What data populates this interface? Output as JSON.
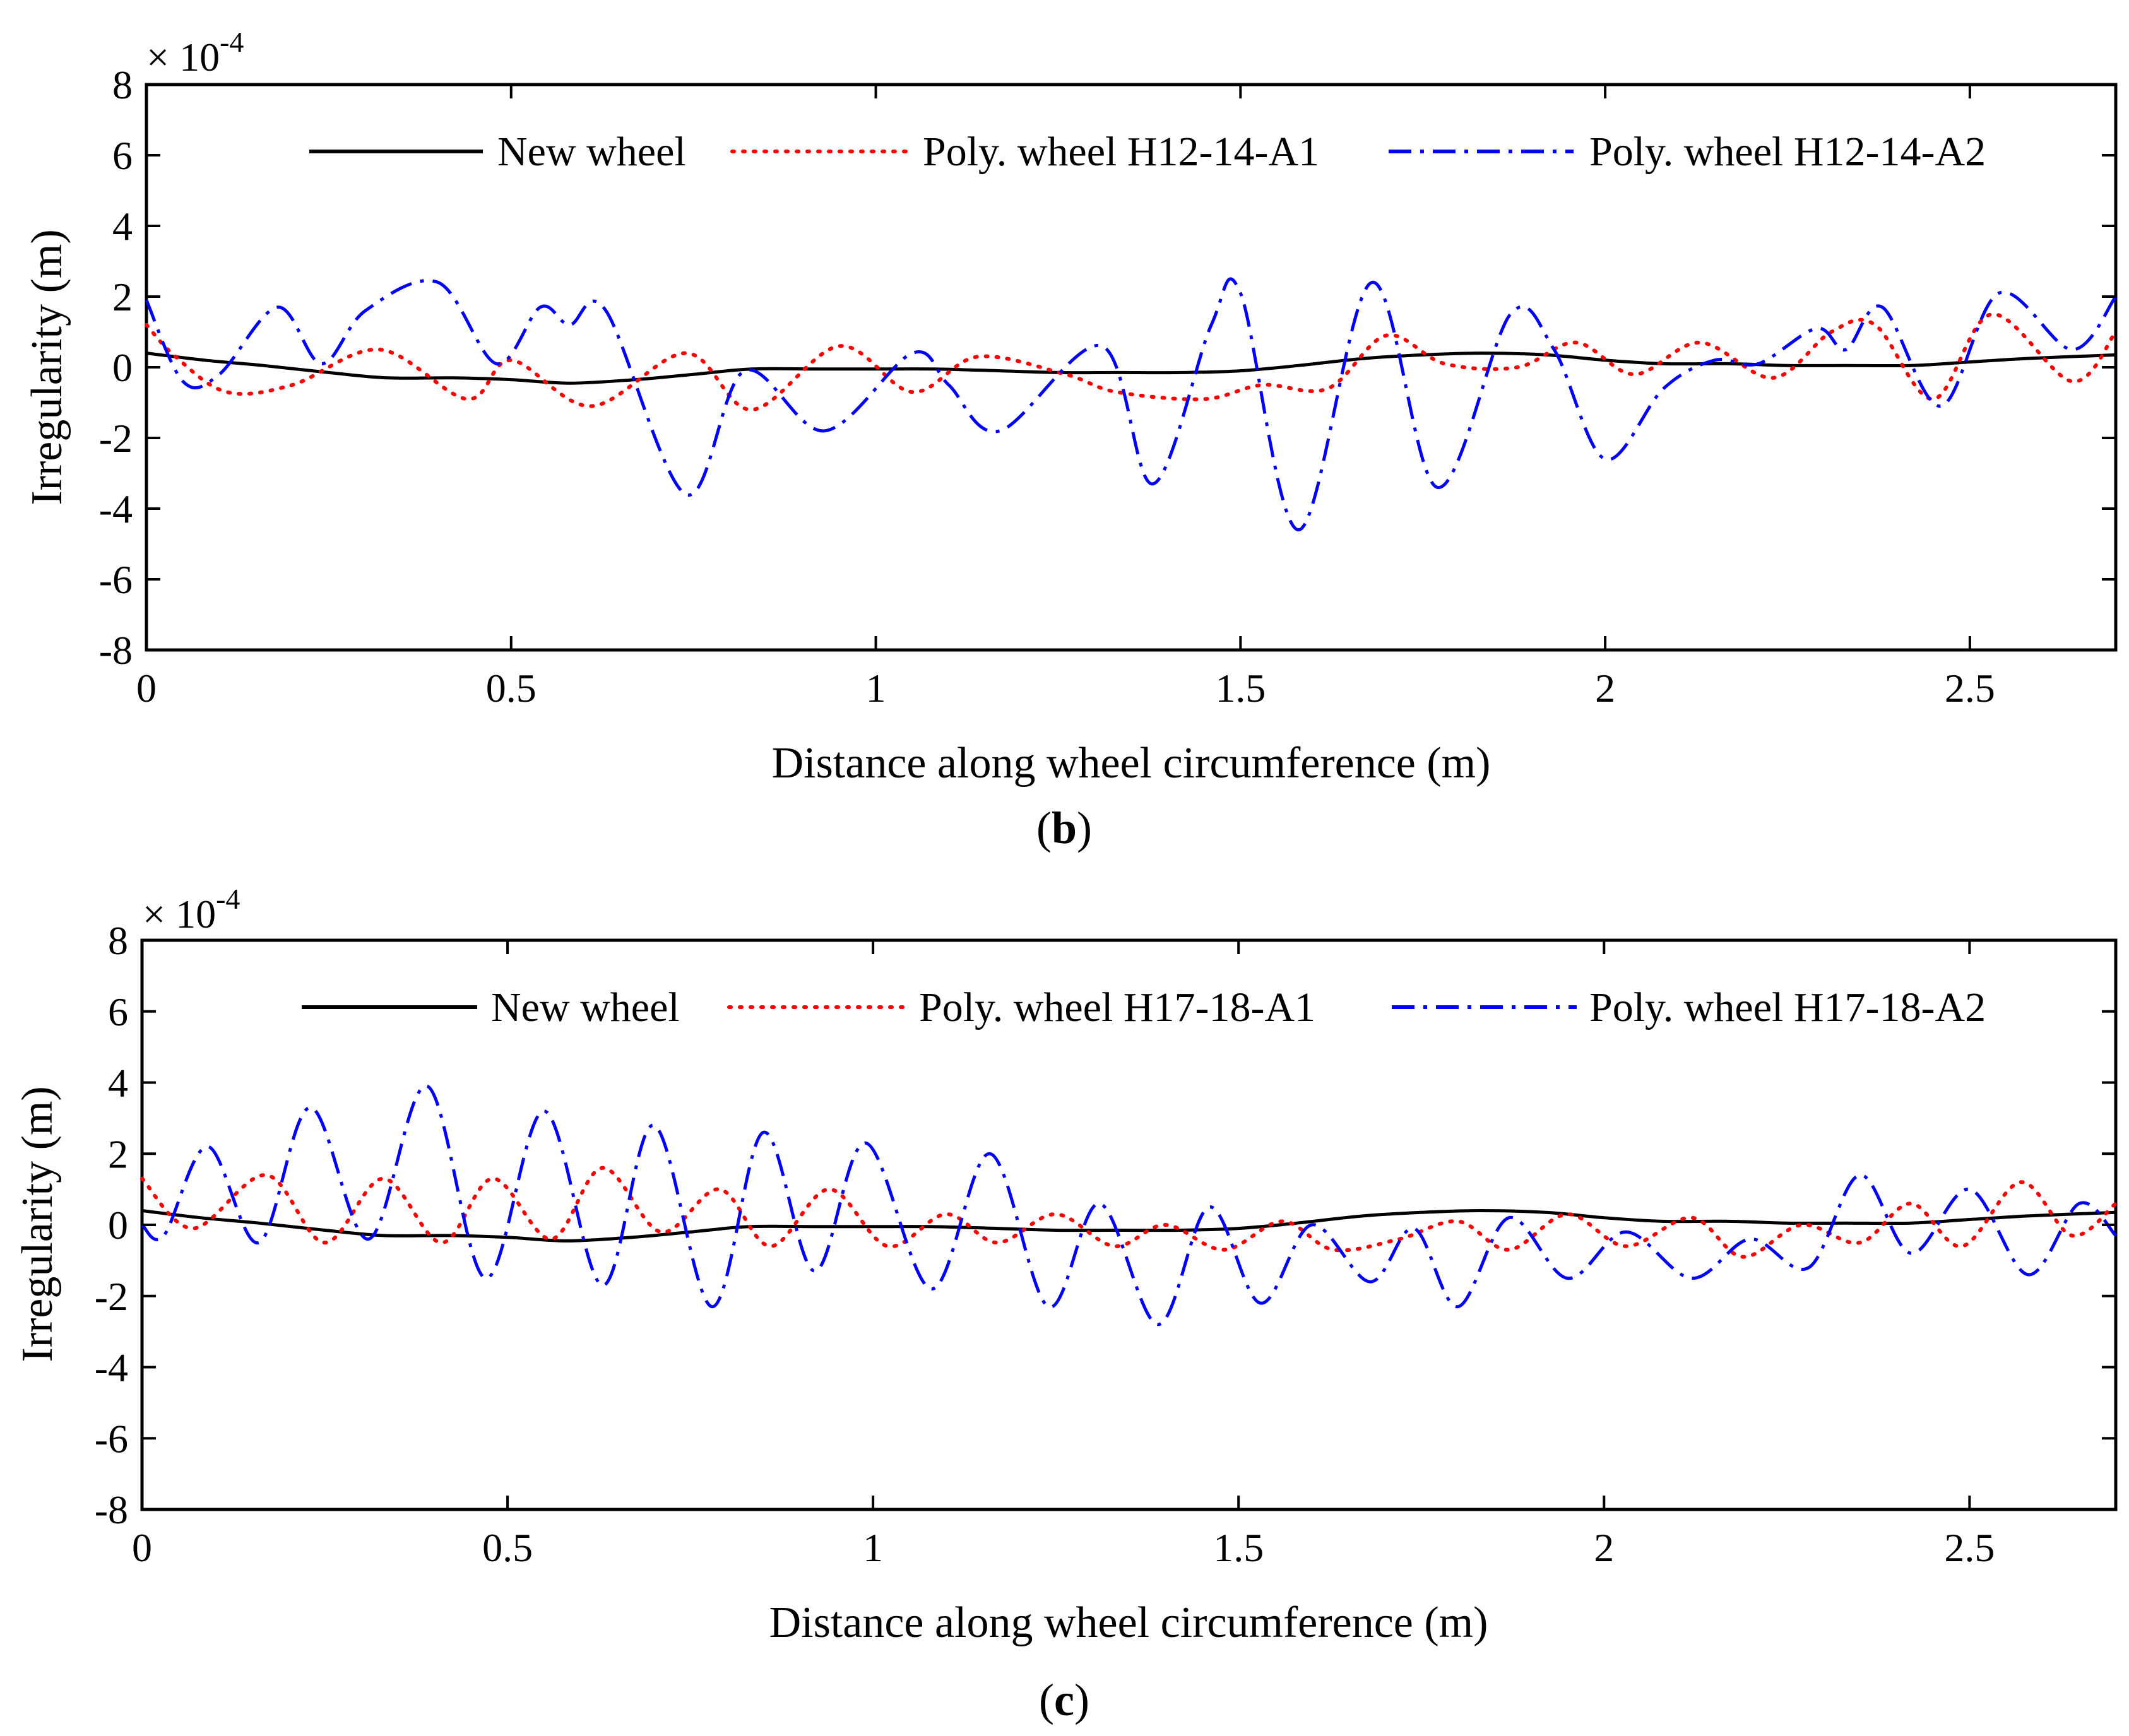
{
  "chart_data": [
    {
      "type": "line",
      "panel": "b",
      "caption_open": "(",
      "caption_letter": "b",
      "caption_close": ")",
      "exponent_base": "× 10",
      "exponent_power": "-4",
      "xlabel": "Distance along wheel circumference (m)",
      "ylabel": "Irregularity (m)",
      "xlim": [
        0,
        2.7
      ],
      "ylim": [
        -8,
        8
      ],
      "xticks": [
        "0",
        "0.5",
        "1",
        "1.5",
        "2",
        "2.5"
      ],
      "xtick_values": [
        0,
        0.5,
        1,
        1.5,
        2,
        2.5
      ],
      "yticks": [
        "8",
        "6",
        "4",
        "2",
        "0",
        "-2",
        "-4",
        "-6",
        "-8"
      ],
      "ytick_values": [
        8,
        6,
        4,
        2,
        0,
        -2,
        -4,
        -6,
        -8
      ],
      "legend_position": "top-right",
      "series": [
        {
          "name": "New wheel",
          "color": "#000000",
          "style": "solid",
          "points": [
            [
              0,
              0.4
            ],
            [
              0.08,
              0.2
            ],
            [
              0.16,
              0.05
            ],
            [
              0.25,
              -0.15
            ],
            [
              0.33,
              -0.3
            ],
            [
              0.42,
              -0.3
            ],
            [
              0.5,
              -0.35
            ],
            [
              0.58,
              -0.45
            ],
            [
              0.67,
              -0.35
            ],
            [
              0.75,
              -0.2
            ],
            [
              0.83,
              -0.05
            ],
            [
              0.92,
              -0.05
            ],
            [
              1.0,
              -0.05
            ],
            [
              1.08,
              -0.05
            ],
            [
              1.17,
              -0.1
            ],
            [
              1.25,
              -0.15
            ],
            [
              1.33,
              -0.15
            ],
            [
              1.42,
              -0.15
            ],
            [
              1.5,
              -0.1
            ],
            [
              1.58,
              0.05
            ],
            [
              1.67,
              0.25
            ],
            [
              1.75,
              0.35
            ],
            [
              1.83,
              0.4
            ],
            [
              1.92,
              0.35
            ],
            [
              2.0,
              0.2
            ],
            [
              2.08,
              0.1
            ],
            [
              2.17,
              0.1
            ],
            [
              2.25,
              0.05
            ],
            [
              2.33,
              0.05
            ],
            [
              2.42,
              0.05
            ],
            [
              2.5,
              0.15
            ],
            [
              2.58,
              0.25
            ],
            [
              2.7,
              0.35
            ]
          ]
        },
        {
          "name": "Poly. wheel H12-14-A1",
          "color": "#ff0000",
          "style": "dotted",
          "points": [
            [
              0,
              1.2
            ],
            [
              0.04,
              0.3
            ],
            [
              0.11,
              -0.7
            ],
            [
              0.2,
              -0.5
            ],
            [
              0.32,
              0.5
            ],
            [
              0.44,
              -0.9
            ],
            [
              0.5,
              0.2
            ],
            [
              0.61,
              -1.1
            ],
            [
              0.74,
              0.4
            ],
            [
              0.83,
              -1.2
            ],
            [
              0.95,
              0.6
            ],
            [
              1.05,
              -0.7
            ],
            [
              1.14,
              0.3
            ],
            [
              1.26,
              -0.2
            ],
            [
              1.33,
              -0.7
            ],
            [
              1.45,
              -0.9
            ],
            [
              1.53,
              -0.5
            ],
            [
              1.62,
              -0.6
            ],
            [
              1.7,
              0.9
            ],
            [
              1.78,
              0.1
            ],
            [
              1.88,
              0.0
            ],
            [
              1.96,
              0.7
            ],
            [
              2.04,
              -0.2
            ],
            [
              2.13,
              0.7
            ],
            [
              2.23,
              -0.3
            ],
            [
              2.31,
              1.0
            ],
            [
              2.37,
              1.2
            ],
            [
              2.45,
              -0.9
            ],
            [
              2.53,
              1.5
            ],
            [
              2.64,
              -0.4
            ],
            [
              2.7,
              1.0
            ]
          ]
        },
        {
          "name": "Poly. wheel H12-14-A2",
          "color": "#0000ff",
          "style": "dashdot",
          "points": [
            [
              0,
              1.9
            ],
            [
              0.05,
              -0.4
            ],
            [
              0.1,
              -0.2
            ],
            [
              0.18,
              1.7
            ],
            [
              0.24,
              0.1
            ],
            [
              0.3,
              1.6
            ],
            [
              0.4,
              2.4
            ],
            [
              0.48,
              0.1
            ],
            [
              0.54,
              1.7
            ],
            [
              0.58,
              1.2
            ],
            [
              0.63,
              1.6
            ],
            [
              0.74,
              -3.6
            ],
            [
              0.82,
              -0.1
            ],
            [
              0.93,
              -1.8
            ],
            [
              1.05,
              0.4
            ],
            [
              1.1,
              -0.5
            ],
            [
              1.17,
              -1.8
            ],
            [
              1.31,
              0.6
            ],
            [
              1.38,
              -3.3
            ],
            [
              1.46,
              1.2
            ],
            [
              1.5,
              2.1
            ],
            [
              1.58,
              -4.6
            ],
            [
              1.68,
              2.4
            ],
            [
              1.77,
              -3.4
            ],
            [
              1.87,
              1.5
            ],
            [
              1.93,
              0.5
            ],
            [
              2.0,
              -2.6
            ],
            [
              2.08,
              -0.6
            ],
            [
              2.15,
              0.2
            ],
            [
              2.21,
              0.1
            ],
            [
              2.29,
              1.1
            ],
            [
              2.33,
              0.5
            ],
            [
              2.38,
              1.7
            ],
            [
              2.46,
              -1.1
            ],
            [
              2.54,
              2.1
            ],
            [
              2.64,
              0.5
            ],
            [
              2.7,
              2.0
            ]
          ]
        }
      ]
    },
    {
      "type": "line",
      "panel": "c",
      "caption_open": "(",
      "caption_letter": "c",
      "caption_close": ")",
      "exponent_base": "× 10",
      "exponent_power": "-4",
      "xlabel": "Distance along wheel circumference (m)",
      "ylabel": "Irregularity (m)",
      "xlim": [
        0,
        2.7
      ],
      "ylim": [
        -8,
        8
      ],
      "xticks": [
        "0",
        "0.5",
        "1",
        "1.5",
        "2",
        "2.5"
      ],
      "xtick_values": [
        0,
        0.5,
        1,
        1.5,
        2,
        2.5
      ],
      "yticks": [
        "8",
        "6",
        "4",
        "2",
        "0",
        "-2",
        "-4",
        "-6",
        "-8"
      ],
      "ytick_values": [
        8,
        6,
        4,
        2,
        0,
        -2,
        -4,
        -6,
        -8
      ],
      "legend_position": "top-right",
      "series": [
        {
          "name": "New wheel",
          "color": "#000000",
          "style": "solid",
          "points": [
            [
              0,
              0.4
            ],
            [
              0.08,
              0.2
            ],
            [
              0.16,
              0.05
            ],
            [
              0.25,
              -0.15
            ],
            [
              0.33,
              -0.3
            ],
            [
              0.42,
              -0.3
            ],
            [
              0.5,
              -0.35
            ],
            [
              0.58,
              -0.45
            ],
            [
              0.67,
              -0.35
            ],
            [
              0.75,
              -0.2
            ],
            [
              0.83,
              -0.05
            ],
            [
              0.92,
              -0.05
            ],
            [
              1.0,
              -0.05
            ],
            [
              1.08,
              -0.05
            ],
            [
              1.17,
              -0.1
            ],
            [
              1.25,
              -0.15
            ],
            [
              1.33,
              -0.15
            ],
            [
              1.42,
              -0.15
            ],
            [
              1.5,
              -0.1
            ],
            [
              1.58,
              0.05
            ],
            [
              1.67,
              0.25
            ],
            [
              1.75,
              0.35
            ],
            [
              1.83,
              0.4
            ],
            [
              1.92,
              0.35
            ],
            [
              2.0,
              0.2
            ],
            [
              2.08,
              0.1
            ],
            [
              2.17,
              0.1
            ],
            [
              2.25,
              0.05
            ],
            [
              2.33,
              0.05
            ],
            [
              2.42,
              0.05
            ],
            [
              2.5,
              0.15
            ],
            [
              2.58,
              0.25
            ],
            [
              2.7,
              0.35
            ]
          ]
        },
        {
          "name": "Poly. wheel H17-18-A1",
          "color": "#ff0000",
          "style": "dotted",
          "points": [
            [
              0,
              1.3
            ],
            [
              0.07,
              -0.1
            ],
            [
              0.17,
              1.4
            ],
            [
              0.25,
              -0.5
            ],
            [
              0.33,
              1.3
            ],
            [
              0.41,
              -0.5
            ],
            [
              0.48,
              1.3
            ],
            [
              0.56,
              -0.4
            ],
            [
              0.63,
              1.6
            ],
            [
              0.71,
              -0.2
            ],
            [
              0.79,
              1.0
            ],
            [
              0.86,
              -0.6
            ],
            [
              0.94,
              1.0
            ],
            [
              1.02,
              -0.6
            ],
            [
              1.1,
              0.3
            ],
            [
              1.17,
              -0.5
            ],
            [
              1.25,
              0.3
            ],
            [
              1.33,
              -0.6
            ],
            [
              1.4,
              0.0
            ],
            [
              1.48,
              -0.7
            ],
            [
              1.56,
              0.1
            ],
            [
              1.63,
              -0.7
            ],
            [
              1.72,
              -0.4
            ],
            [
              1.8,
              0.1
            ],
            [
              1.87,
              -0.7
            ],
            [
              1.95,
              0.3
            ],
            [
              2.03,
              -0.6
            ],
            [
              2.12,
              0.2
            ],
            [
              2.19,
              -0.9
            ],
            [
              2.27,
              0.0
            ],
            [
              2.35,
              -0.5
            ],
            [
              2.42,
              0.6
            ],
            [
              2.49,
              -0.6
            ],
            [
              2.57,
              1.2
            ],
            [
              2.64,
              -0.3
            ],
            [
              2.7,
              0.6
            ]
          ]
        },
        {
          "name": "Poly. wheel H17-18-A2",
          "color": "#0000ff",
          "style": "dashdot",
          "points": [
            [
              0,
              0.0
            ],
            [
              0.03,
              -0.3
            ],
            [
              0.09,
              2.2
            ],
            [
              0.16,
              -0.5
            ],
            [
              0.23,
              3.3
            ],
            [
              0.31,
              -0.4
            ],
            [
              0.39,
              3.9
            ],
            [
              0.47,
              -1.5
            ],
            [
              0.55,
              3.2
            ],
            [
              0.63,
              -1.7
            ],
            [
              0.7,
              2.8
            ],
            [
              0.78,
              -2.3
            ],
            [
              0.85,
              2.6
            ],
            [
              0.92,
              -1.3
            ],
            [
              0.99,
              2.3
            ],
            [
              1.08,
              -1.8
            ],
            [
              1.16,
              2.0
            ],
            [
              1.24,
              -2.3
            ],
            [
              1.31,
              0.6
            ],
            [
              1.39,
              -2.8
            ],
            [
              1.46,
              0.5
            ],
            [
              1.53,
              -2.2
            ],
            [
              1.6,
              0.0
            ],
            [
              1.68,
              -1.6
            ],
            [
              1.74,
              -0.1
            ],
            [
              1.8,
              -2.3
            ],
            [
              1.87,
              0.2
            ],
            [
              1.95,
              -1.5
            ],
            [
              2.03,
              -0.2
            ],
            [
              2.12,
              -1.5
            ],
            [
              2.2,
              -0.4
            ],
            [
              2.28,
              -1.2
            ],
            [
              2.35,
              1.4
            ],
            [
              2.42,
              -0.8
            ],
            [
              2.5,
              1.0
            ],
            [
              2.58,
              -1.4
            ],
            [
              2.65,
              0.6
            ],
            [
              2.7,
              -0.3
            ]
          ]
        }
      ]
    }
  ]
}
